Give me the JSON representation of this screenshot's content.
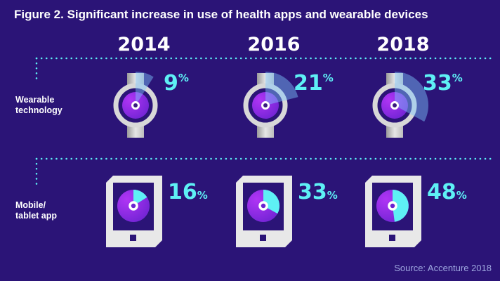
{
  "chart_data": {
    "type": "pictogram",
    "title": "Figure 2. Significant increase in use of health apps and wearable devices",
    "categories": [
      "2014",
      "2016",
      "2018"
    ],
    "series": [
      {
        "name": "Wearable technology",
        "label_lines": [
          "Wearable",
          "technology"
        ],
        "values": [
          9,
          21,
          33
        ],
        "icon": "watch-icon"
      },
      {
        "name": "Mobile/tablet app",
        "label_lines": [
          "Mobile/",
          "tablet app"
        ],
        "values": [
          16,
          33,
          48
        ],
        "icon": "tablet-icon"
      }
    ],
    "unit": "%",
    "source": "Source: Accenture 2018"
  },
  "colors": {
    "background": "#2b1477",
    "accent": "#5ef0f5",
    "purple": "#9b30f0"
  }
}
